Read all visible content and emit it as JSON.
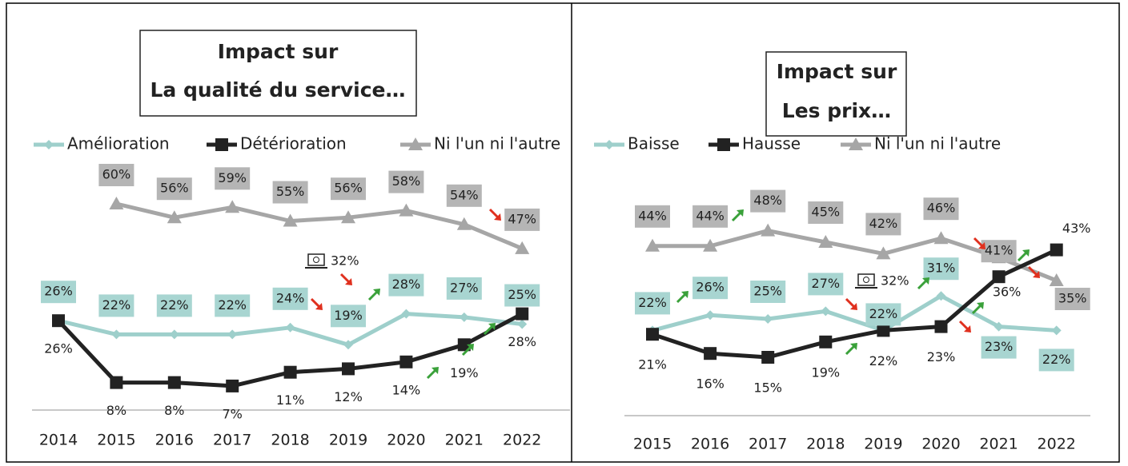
{
  "chart_data": [
    {
      "type": "line",
      "title": [
        "Impact sur",
        "La qualité du service…"
      ],
      "categories": [
        "2014",
        "2015",
        "2016",
        "2017",
        "2018",
        "2019",
        "2020",
        "2021",
        "2022"
      ],
      "series": [
        {
          "name": "Amélioration",
          "color": "#9ecfcb",
          "values": [
            26,
            22,
            22,
            22,
            24,
            19,
            28,
            27,
            25
          ],
          "value_labels": [
            "26%",
            "22%",
            "22%",
            "22%",
            "24%",
            "19%",
            "28%",
            "27%",
            "25%"
          ]
        },
        {
          "name": "Détérioration",
          "color": "#222222",
          "values": [
            26,
            8,
            8,
            7,
            11,
            12,
            14,
            19,
            28
          ],
          "value_labels": [
            "26%",
            "8%",
            "8%",
            "7%",
            "11%",
            "12%",
            "14%",
            "19%",
            "28%"
          ]
        },
        {
          "name": "Ni l'un ni l'autre",
          "color": "#a6a6a6",
          "values": [
            null,
            60,
            56,
            59,
            55,
            56,
            58,
            54,
            47
          ],
          "value_labels": [
            null,
            "60%",
            "56%",
            "59%",
            "55%",
            "56%",
            "58%",
            "54%",
            "47%"
          ]
        }
      ],
      "annotation": "32%"
    },
    {
      "type": "line",
      "title": [
        "Impact sur",
        "Les prix…"
      ],
      "categories": [
        "2015",
        "2016",
        "2017",
        "2018",
        "2019",
        "2020",
        "2021",
        "2022"
      ],
      "series": [
        {
          "name": "Baisse",
          "color": "#9ecfcb",
          "values": [
            22,
            26,
            25,
            27,
            22,
            31,
            23,
            22
          ],
          "value_labels": [
            "22%",
            "26%",
            "25%",
            "27%",
            "22%",
            "31%",
            "23%",
            "22%"
          ]
        },
        {
          "name": "Hausse",
          "color": "#222222",
          "values": [
            21,
            16,
            15,
            19,
            22,
            23,
            36,
            43
          ],
          "value_labels": [
            "21%",
            "16%",
            "15%",
            "19%",
            "22%",
            "23%",
            "36%",
            "43%"
          ]
        },
        {
          "name": "Ni l'un ni l'autre",
          "color": "#a6a6a6",
          "values": [
            44,
            44,
            48,
            45,
            42,
            46,
            41,
            35
          ],
          "value_labels": [
            "44%",
            "44%",
            "48%",
            "45%",
            "42%",
            "46%",
            "41%",
            "35%"
          ]
        }
      ],
      "annotation": "32%"
    }
  ]
}
